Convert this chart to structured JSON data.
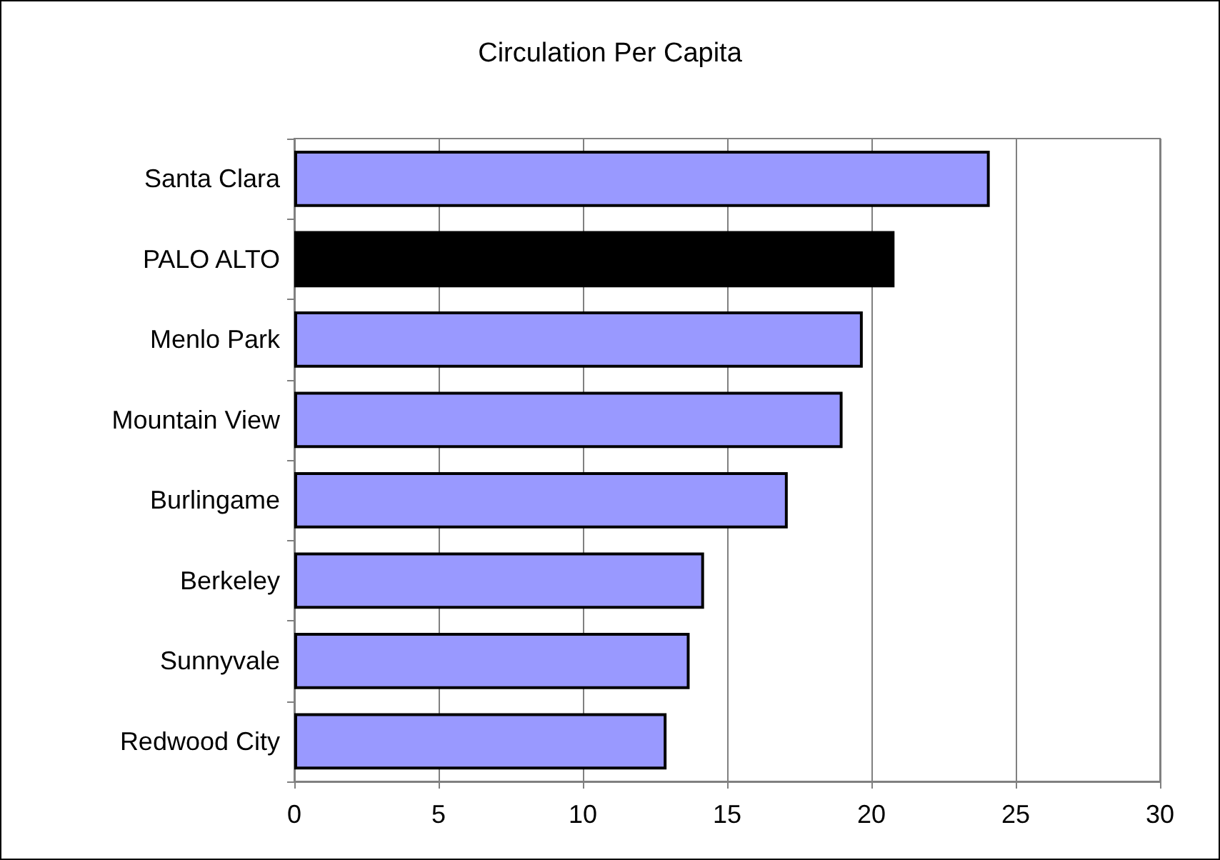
{
  "chart_data": {
    "type": "bar",
    "orientation": "horizontal",
    "title": "Circulation Per Capita",
    "categories": [
      "Santa Clara",
      "PALO ALTO",
      "Menlo Park",
      "Mountain View",
      "Burlingame",
      "Berkeley",
      "Sunnyvale",
      "Redwood City"
    ],
    "values": [
      24.1,
      20.8,
      19.7,
      19.0,
      17.1,
      14.2,
      13.7,
      12.9
    ],
    "colors": [
      "#9999ff",
      "#000000",
      "#9999ff",
      "#9999ff",
      "#9999ff",
      "#9999ff",
      "#9999ff",
      "#9999ff"
    ],
    "xlim": [
      0,
      30
    ],
    "xticks": [
      0,
      5,
      10,
      15,
      20,
      25,
      30
    ],
    "grid": "x"
  }
}
